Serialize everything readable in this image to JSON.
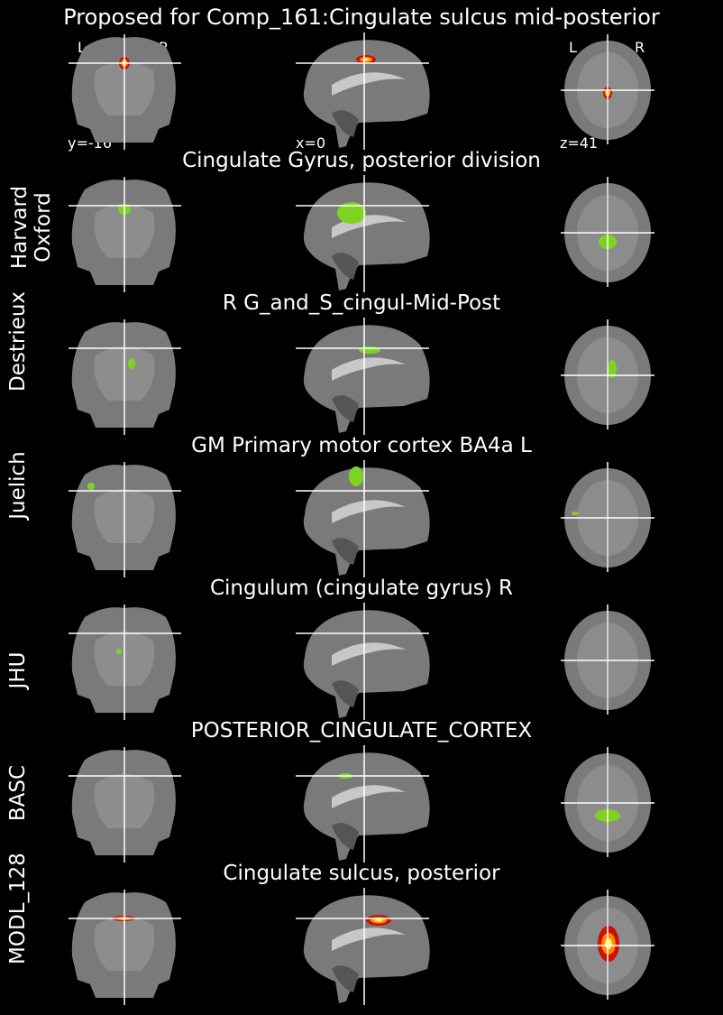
{
  "header": {
    "title": "Proposed for Comp_161:Cingulate sulcus mid-posterior"
  },
  "orientation": {
    "left": "L",
    "right": "R",
    "left2": "L",
    "right2": "R"
  },
  "coords": {
    "y": "y=-16",
    "x": "x=0",
    "z": "z=41"
  },
  "rows": [
    {
      "label": "",
      "title": "",
      "overlay": "hot"
    },
    {
      "label": "Harvard\nOxford",
      "title": "Cingulate Gyrus, posterior division",
      "overlay": "green"
    },
    {
      "label": "Destrieux",
      "title": "R G_and_S_cingul-Mid-Post",
      "overlay": "green"
    },
    {
      "label": "Juelich",
      "title": "GM Primary motor cortex BA4a L",
      "overlay": "green"
    },
    {
      "label": "JHU",
      "title": "Cingulum (cingulate gyrus) R",
      "overlay": "green"
    },
    {
      "label": "BASC",
      "title": "POSTERIOR_CINGULATE_CORTEX",
      "overlay": "green"
    },
    {
      "label": "MODL_128",
      "title": "Cingulate sulcus, posterior",
      "overlay": "hot"
    }
  ],
  "colors": {
    "overlay_green": "#7ed321",
    "overlay_hot_outer": "#cc1100",
    "overlay_hot_inner": "#ffee66",
    "crosshair": "#ffffff",
    "brain": "#7a7a7a"
  }
}
